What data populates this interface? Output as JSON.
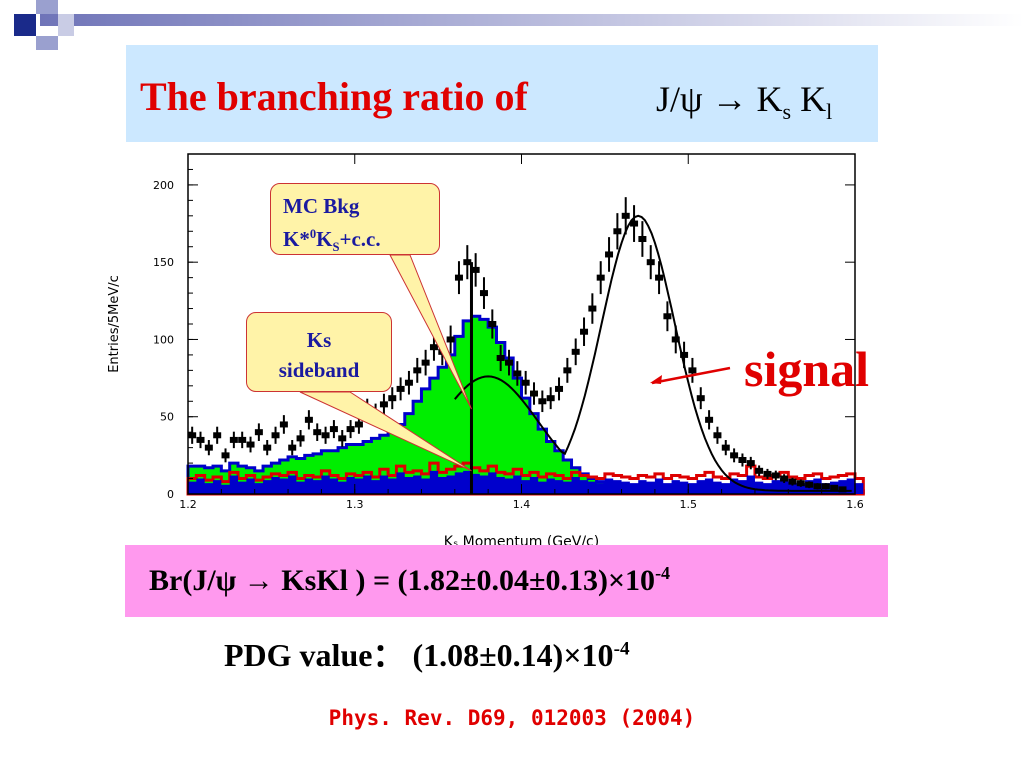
{
  "title": {
    "text": "The branching ratio of",
    "formula_main": "J/ψ → K",
    "formula_sub1": "s",
    "formula_mid": " K",
    "formula_sub2": "l"
  },
  "callouts": {
    "mc_line1": "MC Bkg",
    "mc_line2_pre": "K*",
    "mc_line2_sup": "0",
    "mc_line2_mid": "K",
    "mc_line2_sub": "S",
    "mc_line2_post": "+c.c.",
    "ks_line1": "Ks",
    "ks_line2": "sideband"
  },
  "signal_label": "signal",
  "result": {
    "text": "Br(J/ψ → KsKl ) = (1.82±0.04±0.13)×10",
    "exp": "-4"
  },
  "pdg": {
    "text": "PDG value：   (1.08±0.14)×10",
    "exp": "-4"
  },
  "reference": "Phys. Rev. D69, 012003 (2004)",
  "colors": {
    "title_red": "#e00000",
    "title_bg": "#cce8ff",
    "result_bg": "#ff99ee",
    "callout_bg": "#fff3a8",
    "callout_text": "#1a1aa0",
    "green": "#00ee00",
    "blue": "#0000cc",
    "red": "#dd0000"
  },
  "chart_data": {
    "type": "histogram",
    "xlabel": "K_S Momentum (GeV/c)",
    "ylabel": "Entries/5MeV/c",
    "xlim": [
      1.2,
      1.6
    ],
    "ylim": [
      0,
      220
    ],
    "xticks": [
      "1.2",
      "1.3",
      "1.4",
      "1.5",
      "1.6"
    ],
    "yticks": [
      "0",
      "50",
      "100",
      "150",
      "200"
    ],
    "bin_width": 0.005,
    "series": [
      {
        "kind": "outline",
        "values": [
          18,
          18,
          17,
          18,
          15,
          20,
          18,
          17,
          15,
          18,
          20,
          22,
          24,
          23,
          25,
          26,
          28,
          28,
          30,
          32,
          32,
          34,
          36,
          38,
          42,
          45,
          52,
          60,
          68,
          75,
          82,
          90,
          102,
          112,
          115,
          113,
          108,
          98,
          88,
          75,
          62,
          52,
          42,
          34,
          28,
          22,
          17,
          13,
          10,
          8,
          7,
          6,
          5,
          5,
          5,
          4,
          4,
          4,
          3,
          3,
          3,
          2,
          3,
          3,
          3,
          3,
          2,
          3,
          2,
          2,
          3,
          2,
          3,
          2,
          2,
          3,
          2,
          2,
          3,
          2,
          2
        ]
      },
      {
        "kind": "green",
        "values": [
          18,
          18,
          17,
          18,
          15,
          20,
          18,
          17,
          15,
          18,
          20,
          22,
          24,
          23,
          25,
          26,
          28,
          28,
          30,
          32,
          32,
          34,
          36,
          38,
          42,
          45,
          52,
          60,
          68,
          75,
          82,
          90,
          102,
          112,
          115,
          113,
          108,
          98,
          88,
          75,
          62,
          52,
          42,
          34,
          28,
          22,
          17,
          13,
          10,
          8,
          7,
          6,
          5,
          5,
          5,
          4,
          4,
          4,
          3,
          3,
          3,
          2,
          3,
          3,
          3,
          3,
          2,
          3,
          2,
          2,
          3,
          2,
          3,
          2,
          2,
          3,
          2,
          2,
          3,
          2,
          2
        ]
      },
      {
        "kind": "red",
        "values": [
          10,
          12,
          9,
          11,
          8,
          14,
          10,
          12,
          9,
          11,
          13,
          12,
          14,
          10,
          12,
          11,
          15,
          12,
          10,
          13,
          12,
          14,
          11,
          16,
          12,
          18,
          14,
          15,
          13,
          20,
          14,
          16,
          18,
          20,
          17,
          15,
          18,
          14,
          13,
          16,
          12,
          14,
          11,
          13,
          12,
          10,
          14,
          12,
          11,
          10,
          13,
          12,
          11,
          10,
          12,
          11,
          13,
          10,
          12,
          11,
          10,
          12,
          14,
          11,
          10,
          13,
          12,
          18,
          11,
          10,
          12,
          14,
          11,
          10,
          12,
          13,
          10,
          11,
          12,
          13,
          10
        ]
      },
      {
        "kind": "blue",
        "values": [
          8,
          10,
          7,
          9,
          6,
          12,
          8,
          10,
          7,
          9,
          11,
          10,
          12,
          8,
          10,
          9,
          12,
          10,
          8,
          11,
          10,
          12,
          9,
          12,
          10,
          14,
          11,
          12,
          10,
          15,
          11,
          12,
          14,
          15,
          13,
          12,
          14,
          11,
          10,
          12,
          9,
          11,
          8,
          10,
          9,
          8,
          11,
          9,
          8,
          7,
          10,
          9,
          8,
          7,
          9,
          8,
          10,
          7,
          9,
          8,
          7,
          9,
          10,
          8,
          7,
          10,
          9,
          12,
          8,
          7,
          9,
          10,
          8,
          7,
          9,
          10,
          7,
          8,
          9,
          10,
          7
        ]
      }
    ],
    "points": {
      "x": [
        1.2025,
        1.2075,
        1.2125,
        1.2175,
        1.2225,
        1.2275,
        1.2325,
        1.2375,
        1.2425,
        1.2475,
        1.2525,
        1.2575,
        1.2625,
        1.2675,
        1.2725,
        1.2775,
        1.2825,
        1.2875,
        1.2925,
        1.2975,
        1.3025,
        1.3075,
        1.3125,
        1.3175,
        1.3225,
        1.3275,
        1.3325,
        1.3375,
        1.3425,
        1.3475,
        1.3525,
        1.3575,
        1.3625,
        1.3675,
        1.3725,
        1.3775,
        1.3825,
        1.3875,
        1.3925,
        1.3975,
        1.4025,
        1.4075,
        1.4125,
        1.4175,
        1.4225,
        1.4275,
        1.4325,
        1.4375,
        1.4425,
        1.4475,
        1.4525,
        1.4575,
        1.4625,
        1.4675,
        1.4725,
        1.4775,
        1.4825,
        1.4875,
        1.4925,
        1.4975,
        1.5025,
        1.5075,
        1.5125,
        1.5175,
        1.5225,
        1.5275,
        1.5325,
        1.5375,
        1.5425,
        1.5475,
        1.5525,
        1.5575,
        1.5625,
        1.5675,
        1.5725,
        1.5775,
        1.5825,
        1.5875,
        1.5925
      ],
      "y": [
        38,
        35,
        30,
        38,
        25,
        35,
        35,
        32,
        40,
        30,
        38,
        45,
        30,
        36,
        48,
        40,
        38,
        42,
        36,
        42,
        45,
        55,
        52,
        58,
        62,
        68,
        72,
        80,
        85,
        95,
        92,
        100,
        140,
        150,
        145,
        130,
        110,
        88,
        85,
        78,
        72,
        65,
        60,
        62,
        68,
        80,
        92,
        105,
        120,
        140,
        155,
        170,
        180,
        175,
        165,
        150,
        140,
        115,
        100,
        90,
        80,
        62,
        48,
        38,
        30,
        25,
        22,
        20,
        15,
        13,
        12,
        10,
        8,
        7,
        6,
        5,
        5,
        4,
        3
      ]
    },
    "fit": {
      "peak_x": 1.47,
      "peak_y": 178,
      "sigma": 0.022,
      "bkg_peak_x": 1.38,
      "bkg_peak_y": 78
    }
  }
}
